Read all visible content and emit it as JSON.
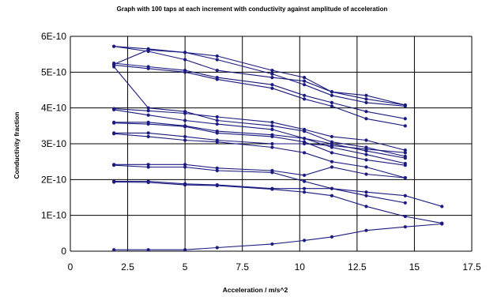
{
  "chart_data": {
    "type": "scatter",
    "title": "Graph with 100 taps at each increment with conductivity against amplitude of acceleration",
    "xlabel": "Acceleration / m/s^2",
    "ylabel": "Conductivity fraction",
    "xlim": [
      0,
      17.5
    ],
    "ylim": [
      0,
      6e-10
    ],
    "x_ticks": [
      0,
      2.5,
      5,
      7.5,
      10,
      12.5,
      15,
      17.5
    ],
    "x_tick_labels": [
      "0",
      "2.5",
      "5",
      "7.5",
      "10",
      "12.5",
      "15",
      "17.5"
    ],
    "y_ticks": [
      0,
      1e-10,
      2e-10,
      3e-10,
      4e-10,
      5e-10,
      6e-10
    ],
    "y_tick_labels": [
      "0",
      "1E-10",
      "2E-10",
      "3E-10",
      "4E-10",
      "5E-10",
      "6E-10"
    ],
    "grid": true,
    "legend": "none",
    "colors": {
      "line": "#1a1a80"
    },
    "series": [
      {
        "x": [
          1.9,
          3.4,
          5.0,
          6.4,
          8.8,
          10.2,
          11.4,
          12.9,
          14.6
        ],
        "y": [
          5.72e-10,
          5.65e-10,
          5.55e-10,
          5.45e-10,
          5.05e-10,
          4.85e-10,
          4.45e-10,
          4.35e-10,
          4.08e-10
        ]
      },
      {
        "x": [
          1.9,
          3.4,
          5.0,
          6.4,
          8.8,
          10.2,
          11.4,
          12.9,
          14.6
        ],
        "y": [
          5.72e-10,
          5.58e-10,
          5.35e-10,
          5.05e-10,
          4.85e-10,
          4.75e-10,
          4.45e-10,
          4.25e-10,
          4.08e-10
        ]
      },
      {
        "x": [
          1.9,
          3.4,
          5.0,
          6.4,
          8.8,
          10.2,
          11.4,
          12.9,
          14.6
        ],
        "y": [
          5.22e-10,
          5.62e-10,
          5.55e-10,
          5.35e-10,
          4.95e-10,
          4.65e-10,
          4.35e-10,
          4.15e-10,
          4.05e-10
        ]
      },
      {
        "x": [
          1.9,
          3.4,
          5.0,
          6.4,
          8.8,
          10.2,
          11.4,
          12.9,
          14.6
        ],
        "y": [
          5.25e-10,
          5.15e-10,
          5.05e-10,
          4.85e-10,
          4.65e-10,
          4.35e-10,
          4.15e-10,
          3.9e-10,
          3.7e-10
        ]
      },
      {
        "x": [
          1.9,
          3.4,
          5.0,
          6.4,
          8.8,
          10.2,
          11.4,
          12.9,
          14.6
        ],
        "y": [
          5.2e-10,
          5.1e-10,
          5e-10,
          4.8e-10,
          4.55e-10,
          4.25e-10,
          4.05e-10,
          3.7e-10,
          3.5e-10
        ]
      },
      {
        "x": [
          1.9,
          3.4,
          5.0,
          6.4,
          8.8,
          10.2,
          11.4,
          12.9,
          14.6
        ],
        "y": [
          5.15e-10,
          4e-10,
          3.9e-10,
          3.65e-10,
          3.5e-10,
          3.35e-10,
          3.05e-10,
          2.9e-10,
          2.65e-10
        ]
      },
      {
        "x": [
          1.9,
          3.4,
          5.0,
          6.4,
          8.8,
          10.2,
          11.4,
          12.9,
          14.6
        ],
        "y": [
          3.98e-10,
          3.92e-10,
          3.85e-10,
          3.75e-10,
          3.6e-10,
          3.4e-10,
          3.2e-10,
          3.1e-10,
          2.82e-10
        ]
      },
      {
        "x": [
          1.9,
          3.4,
          5.0,
          6.4,
          8.8,
          10.2,
          11.4,
          12.9,
          14.6
        ],
        "y": [
          3.95e-10,
          3.8e-10,
          3.65e-10,
          3.55e-10,
          3.4e-10,
          3.15e-10,
          3e-10,
          2.8e-10,
          2.6e-10
        ]
      },
      {
        "x": [
          1.9,
          3.4,
          5.0,
          6.4,
          8.8,
          10.2,
          11.4,
          12.9,
          14.6
        ],
        "y": [
          3.6e-10,
          3.6e-10,
          3.5e-10,
          3.35e-10,
          3.25e-10,
          3.15e-10,
          2.9e-10,
          2.7e-10,
          2.45e-10
        ]
      },
      {
        "x": [
          1.9,
          3.4,
          5.0,
          6.4,
          8.8,
          10.2,
          11.4,
          12.9,
          14.6
        ],
        "y": [
          3.58e-10,
          3.55e-10,
          3.48e-10,
          3.3e-10,
          3.2e-10,
          3.05e-10,
          2.75e-10,
          2.55e-10,
          2.4e-10
        ]
      },
      {
        "x": [
          1.9,
          3.4,
          5.0,
          6.4,
          8.8,
          10.2,
          11.4,
          12.9,
          14.6
        ],
        "y": [
          3.3e-10,
          3.3e-10,
          3.2e-10,
          3.1e-10,
          3e-10,
          3e-10,
          2.95e-10,
          2.85e-10,
          2.75e-10
        ]
      },
      {
        "x": [
          1.9,
          3.4,
          5.0,
          6.4,
          8.8,
          10.2,
          11.4,
          12.9,
          14.6
        ],
        "y": [
          3.28e-10,
          3.2e-10,
          3.1e-10,
          3.05e-10,
          2.9e-10,
          2.75e-10,
          2.5e-10,
          2.35e-10,
          2.05e-10
        ]
      },
      {
        "x": [
          1.9,
          3.4,
          5.0,
          6.4,
          8.8,
          10.2,
          11.4,
          12.9,
          14.6
        ],
        "y": [
          2.42e-10,
          2.42e-10,
          2.42e-10,
          2.32e-10,
          2.25e-10,
          2.12e-10,
          2.35e-10,
          2.15e-10,
          2.05e-10
        ]
      },
      {
        "x": [
          1.9,
          3.4,
          5.0,
          6.4,
          8.8,
          10.2,
          11.4,
          12.9,
          14.6
        ],
        "y": [
          2.4e-10,
          2.35e-10,
          2.35e-10,
          2.25e-10,
          2.2e-10,
          1.95e-10,
          1.75e-10,
          1.55e-10,
          1.35e-10
        ]
      },
      {
        "x": [
          1.9,
          3.4,
          5.0,
          6.4,
          8.8,
          10.2,
          11.4,
          12.9,
          14.6,
          16.2
        ],
        "y": [
          1.95e-10,
          1.95e-10,
          1.88e-10,
          1.85e-10,
          1.75e-10,
          1.75e-10,
          1.75e-10,
          1.65e-10,
          1.55e-10,
          1.25e-10
        ]
      },
      {
        "x": [
          1.9,
          3.4,
          5.0,
          6.4,
          8.8,
          10.2,
          11.4,
          12.9,
          14.6,
          16.2
        ],
        "y": [
          1.93e-10,
          1.92e-10,
          1.85e-10,
          1.83e-10,
          1.73e-10,
          1.65e-10,
          1.55e-10,
          1.25e-10,
          9.7e-11,
          7.8e-11
        ]
      },
      {
        "x": [
          1.9,
          3.4,
          5.0,
          6.4,
          8.8,
          10.2,
          11.4,
          12.9,
          14.6,
          16.2
        ],
        "y": [
          4e-12,
          4e-12,
          4e-12,
          1e-11,
          2e-11,
          3e-11,
          4e-11,
          5.8e-11,
          6.8e-11,
          7.6e-11
        ]
      }
    ]
  }
}
